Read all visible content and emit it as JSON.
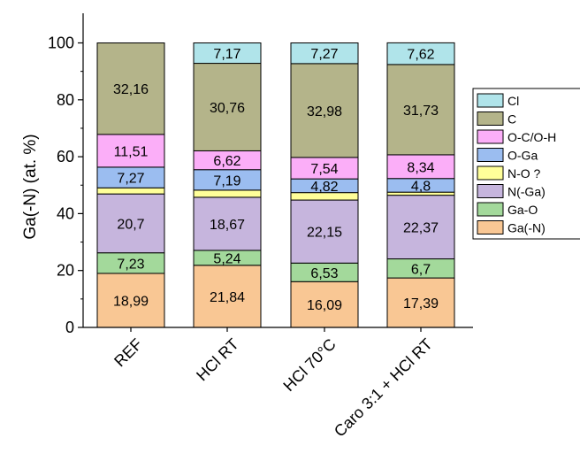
{
  "chart_data": {
    "type": "bar",
    "stacked": true,
    "ylabel": "Ga(-N) (at. %)",
    "xlabel": "",
    "ylim": [
      0,
      100
    ],
    "yticks": [
      0,
      20,
      40,
      60,
      80,
      100
    ],
    "categories": [
      "REF",
      "HCl RT",
      "HCl 70°C",
      "Caro 3:1 + HCl RT"
    ],
    "series": [
      {
        "name": "Ga(-N)",
        "color": "#f9c794",
        "values": [
          18.99,
          21.84,
          16.09,
          17.39
        ],
        "labels": [
          "18,99",
          "21,84",
          "16,09",
          "17,39"
        ]
      },
      {
        "name": "Ga-O",
        "color": "#a3d99b",
        "values": [
          7.23,
          5.24,
          6.53,
          6.7
        ],
        "labels": [
          "7,23",
          "5,24",
          "6,53",
          "6,7"
        ]
      },
      {
        "name": "N(-Ga)",
        "color": "#c6b5dd",
        "values": [
          20.7,
          18.67,
          22.15,
          22.37
        ],
        "labels": [
          "20,7",
          "18,67",
          "22,15",
          "22,37"
        ]
      },
      {
        "name": "N-O ?",
        "color": "#ffff99",
        "values": [
          2.14,
          2.51,
          2.62,
          1.08
        ],
        "labels": [
          "",
          "",
          "",
          ""
        ]
      },
      {
        "name": "O-Ga",
        "color": "#9bbdf0",
        "values": [
          7.27,
          7.19,
          4.82,
          4.8
        ],
        "labels": [
          "7,27",
          "7,19",
          "4,82",
          "4,8"
        ]
      },
      {
        "name": "O-C/O-H",
        "color": "#fbaef8",
        "values": [
          11.51,
          6.62,
          7.54,
          8.34
        ],
        "labels": [
          "11,51",
          "6,62",
          "7,54",
          "8,34"
        ]
      },
      {
        "name": "C",
        "color": "#b4b48a",
        "values": [
          32.16,
          30.76,
          32.98,
          31.73
        ],
        "labels": [
          "32,16",
          "30,76",
          "32,98",
          "31,73"
        ]
      },
      {
        "name": "Cl",
        "color": "#b0e4ea",
        "values": [
          0,
          7.17,
          7.27,
          7.62
        ],
        "labels": [
          "",
          "7,17",
          "7,27",
          "7,62"
        ]
      }
    ],
    "legend": {
      "placement": "right",
      "order": [
        "Cl",
        "C",
        "O-C/O-H",
        "O-Ga",
        "N-O ?",
        "N(-Ga)",
        "Ga-O",
        "Ga(-N)"
      ]
    }
  }
}
